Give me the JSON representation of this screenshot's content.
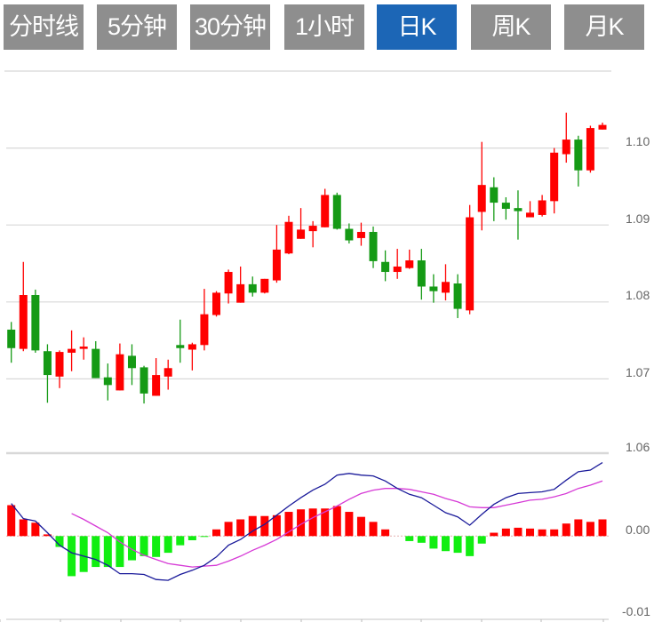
{
  "tabs": [
    {
      "label": "分时线",
      "active": false
    },
    {
      "label": "5分钟",
      "active": false
    },
    {
      "label": "30分钟",
      "active": false
    },
    {
      "label": "1小时",
      "active": false
    },
    {
      "label": "日K",
      "active": true
    },
    {
      "label": "周K",
      "active": false
    },
    {
      "label": "月K",
      "active": false
    }
  ],
  "colors": {
    "tab_bg": "#8e8e8e",
    "tab_active_bg": "#1c66b6",
    "up": "#ff0000",
    "down": "#159a15",
    "hist_up": "#ff0000",
    "hist_down": "#11ee11",
    "dif_line": "#1a1a9a",
    "dea_line": "#d63ad6",
    "grid": "#d8d8d8"
  },
  "chart_data": [
    {
      "type": "candlestick",
      "ylim": [
        1.06,
        1.11
      ],
      "y_ticks": [
        "1.10",
        "1.09",
        "1.08",
        "1.07",
        "1.06"
      ],
      "grid": true,
      "ohlc": [
        [
          1.0764,
          1.0774,
          1.0721,
          1.074
        ],
        [
          1.0739,
          1.0852,
          1.0736,
          1.0809
        ],
        [
          1.0809,
          1.0816,
          1.0734,
          1.0737
        ],
        [
          1.0736,
          1.0745,
          1.0669,
          1.0705
        ],
        [
          1.0703,
          1.0737,
          1.0688,
          1.0735
        ],
        [
          1.0734,
          1.0763,
          1.071,
          1.0739
        ],
        [
          1.0739,
          1.0754,
          1.0725,
          1.0742
        ],
        [
          1.0739,
          1.0749,
          1.0701,
          1.0701
        ],
        [
          1.0702,
          1.072,
          1.0672,
          1.0692
        ],
        [
          1.0685,
          1.0746,
          1.0685,
          1.0732
        ],
        [
          1.073,
          1.0745,
          1.0692,
          1.0714
        ],
        [
          1.0715,
          1.0717,
          1.0668,
          1.0681
        ],
        [
          1.0678,
          1.0727,
          1.0678,
          1.0705
        ],
        [
          1.0703,
          1.0725,
          1.0686,
          1.0714
        ],
        [
          1.0744,
          1.0777,
          1.0721,
          1.074
        ],
        [
          1.0738,
          1.0747,
          1.0711,
          1.0745
        ],
        [
          1.0744,
          1.0817,
          1.0737,
          1.0784
        ],
        [
          1.0783,
          1.0814,
          1.0781,
          1.0812
        ],
        [
          1.0811,
          1.0842,
          1.0798,
          1.0839
        ],
        [
          1.0799,
          1.0846,
          1.0799,
          1.0823
        ],
        [
          1.0823,
          1.0833,
          1.0807,
          1.0812
        ],
        [
          1.0812,
          1.083,
          1.0811,
          1.083
        ],
        [
          1.0828,
          1.09,
          1.0825,
          1.0868
        ],
        [
          1.0863,
          1.0912,
          1.0862,
          1.0904
        ],
        [
          1.0882,
          1.0922,
          1.0882,
          1.0894
        ],
        [
          1.0892,
          1.0905,
          1.0871,
          1.0899
        ],
        [
          1.0897,
          1.0947,
          1.0897,
          1.0939
        ],
        [
          1.0939,
          1.0942,
          1.0894,
          1.0895
        ],
        [
          1.0895,
          1.0902,
          1.0876,
          1.088
        ],
        [
          1.0883,
          1.0903,
          1.0873,
          1.0891
        ],
        [
          1.0891,
          1.0898,
          1.0844,
          1.0853
        ],
        [
          1.0852,
          1.0867,
          1.0827,
          1.0839
        ],
        [
          1.0839,
          1.0869,
          1.083,
          1.0846
        ],
        [
          1.0844,
          1.0868,
          1.0843,
          1.0854
        ],
        [
          1.0854,
          1.0869,
          1.0803,
          1.082
        ],
        [
          1.082,
          1.0836,
          1.0799,
          1.0814
        ],
        [
          1.0812,
          1.0849,
          1.0802,
          1.0826
        ],
        [
          1.0824,
          1.0836,
          1.0779,
          1.0791
        ],
        [
          1.0789,
          1.0926,
          1.0784,
          1.091
        ],
        [
          1.0917,
          1.1008,
          1.0893,
          1.0952
        ],
        [
          1.0949,
          1.0962,
          1.0905,
          1.0929
        ],
        [
          1.0929,
          1.0936,
          1.0907,
          1.0921
        ],
        [
          1.0922,
          1.0945,
          1.0881,
          1.0918
        ],
        [
          1.091,
          1.0931,
          1.091,
          1.0916
        ],
        [
          1.0913,
          1.0939,
          1.0911,
          1.0932
        ],
        [
          1.0931,
          1.1,
          1.0915,
          1.0994
        ],
        [
          1.0992,
          1.1046,
          1.0981,
          1.1011
        ],
        [
          1.1011,
          1.1016,
          1.095,
          1.0971
        ],
        [
          1.0971,
          1.1029,
          1.0968,
          1.1026
        ],
        [
          1.1024,
          1.1033,
          1.1024,
          1.103
        ]
      ]
    },
    {
      "type": "macd",
      "ylim": [
        -0.01,
        0.01
      ],
      "y_ticks": [
        "0.00",
        "-0.01"
      ],
      "histogram": [
        0.0037,
        0.002,
        0.0016,
        0.0002,
        -0.0013,
        -0.0048,
        -0.0043,
        -0.0037,
        -0.0037,
        -0.0037,
        -0.0029,
        -0.0024,
        -0.0025,
        -0.002,
        -0.0011,
        -0.0005,
        -0.0001,
        0.0008,
        0.0017,
        0.002,
        0.0024,
        0.0024,
        0.0025,
        0.0029,
        0.0032,
        0.0033,
        0.0033,
        0.0036,
        0.0029,
        0.0023,
        0.0017,
        0.0008,
        0,
        -0.0006,
        -0.0008,
        -0.0015,
        -0.0018,
        -0.002,
        -0.0024,
        -0.0009,
        0.0004,
        0.0009,
        0.001,
        0.0009,
        0.0008,
        0.0008,
        0.0015,
        0.002,
        0.0017,
        0.002
      ],
      "dif": [
        0.0039,
        0.0021,
        0.0018,
        0.0004,
        -0.0011,
        -0.002,
        -0.0024,
        -0.0028,
        -0.0035,
        -0.0045,
        -0.0045,
        -0.0046,
        -0.0052,
        -0.0053,
        -0.0046,
        -0.0041,
        -0.0035,
        -0.0025,
        -0.0011,
        -0.0004,
        0.0006,
        0.0014,
        0.0025,
        0.0036,
        0.0046,
        0.0055,
        0.0062,
        0.0073,
        0.0075,
        0.0073,
        0.0072,
        0.0066,
        0.0057,
        0.005,
        0.0046,
        0.0037,
        0.0028,
        0.0023,
        0.0013,
        0.0026,
        0.0038,
        0.0046,
        0.0051,
        0.0052,
        0.0053,
        0.0056,
        0.0067,
        0.0077,
        0.0079,
        0.0088
      ],
      "dea": [
        null,
        null,
        null,
        null,
        null,
        0.0027,
        0.002,
        0.0012,
        0.0004,
        -0.0007,
        -0.0016,
        -0.0023,
        -0.0028,
        -0.0033,
        -0.0035,
        -0.0037,
        -0.0036,
        -0.0035,
        -0.003,
        -0.0024,
        -0.0017,
        -0.0011,
        -0.0004,
        0.0005,
        0.0014,
        0.0022,
        0.0029,
        0.0036,
        0.0044,
        0.0051,
        0.0055,
        0.0057,
        0.0057,
        0.0056,
        0.0053,
        0.005,
        0.0045,
        0.0041,
        0.0035,
        0.0034,
        0.0034,
        0.0037,
        0.004,
        0.0043,
        0.0044,
        0.0047,
        0.0051,
        0.0057,
        0.0061,
        0.0066
      ]
    }
  ]
}
